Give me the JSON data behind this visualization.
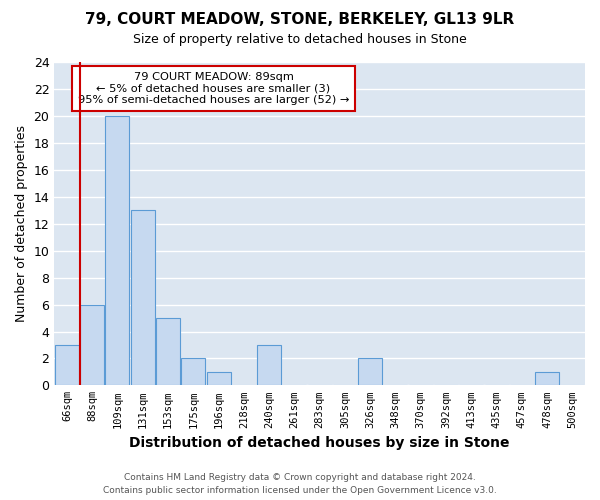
{
  "title": "79, COURT MEADOW, STONE, BERKELEY, GL13 9LR",
  "subtitle": "Size of property relative to detached houses in Stone",
  "xlabel": "Distribution of detached houses by size in Stone",
  "ylabel": "Number of detached properties",
  "bin_labels": [
    "66sqm",
    "88sqm",
    "109sqm",
    "131sqm",
    "153sqm",
    "175sqm",
    "196sqm",
    "218sqm",
    "240sqm",
    "261sqm",
    "283sqm",
    "305sqm",
    "326sqm",
    "348sqm",
    "370sqm",
    "392sqm",
    "413sqm",
    "435sqm",
    "457sqm",
    "478sqm",
    "500sqm"
  ],
  "bar_values": [
    3,
    6,
    20,
    13,
    5,
    2,
    1,
    0,
    3,
    0,
    0,
    0,
    2,
    0,
    0,
    0,
    0,
    0,
    0,
    1,
    0
  ],
  "bar_color": "#c6d9f0",
  "bar_edge_color": "#5b9bd5",
  "vline_x": 0.525,
  "vline_color": "#cc0000",
  "annotation_text": "79 COURT MEADOW: 89sqm\n← 5% of detached houses are smaller (3)\n95% of semi-detached houses are larger (52) →",
  "annotation_box_edge": "#cc0000",
  "ylim": [
    0,
    24
  ],
  "yticks": [
    0,
    2,
    4,
    6,
    8,
    10,
    12,
    14,
    16,
    18,
    20,
    22,
    24
  ],
  "footer_line1": "Contains HM Land Registry data © Crown copyright and database right 2024.",
  "footer_line2": "Contains public sector information licensed under the Open Government Licence v3.0.",
  "bg_color": "#ffffff",
  "plot_bg_color": "#dce6f1",
  "grid_color": "#ffffff"
}
